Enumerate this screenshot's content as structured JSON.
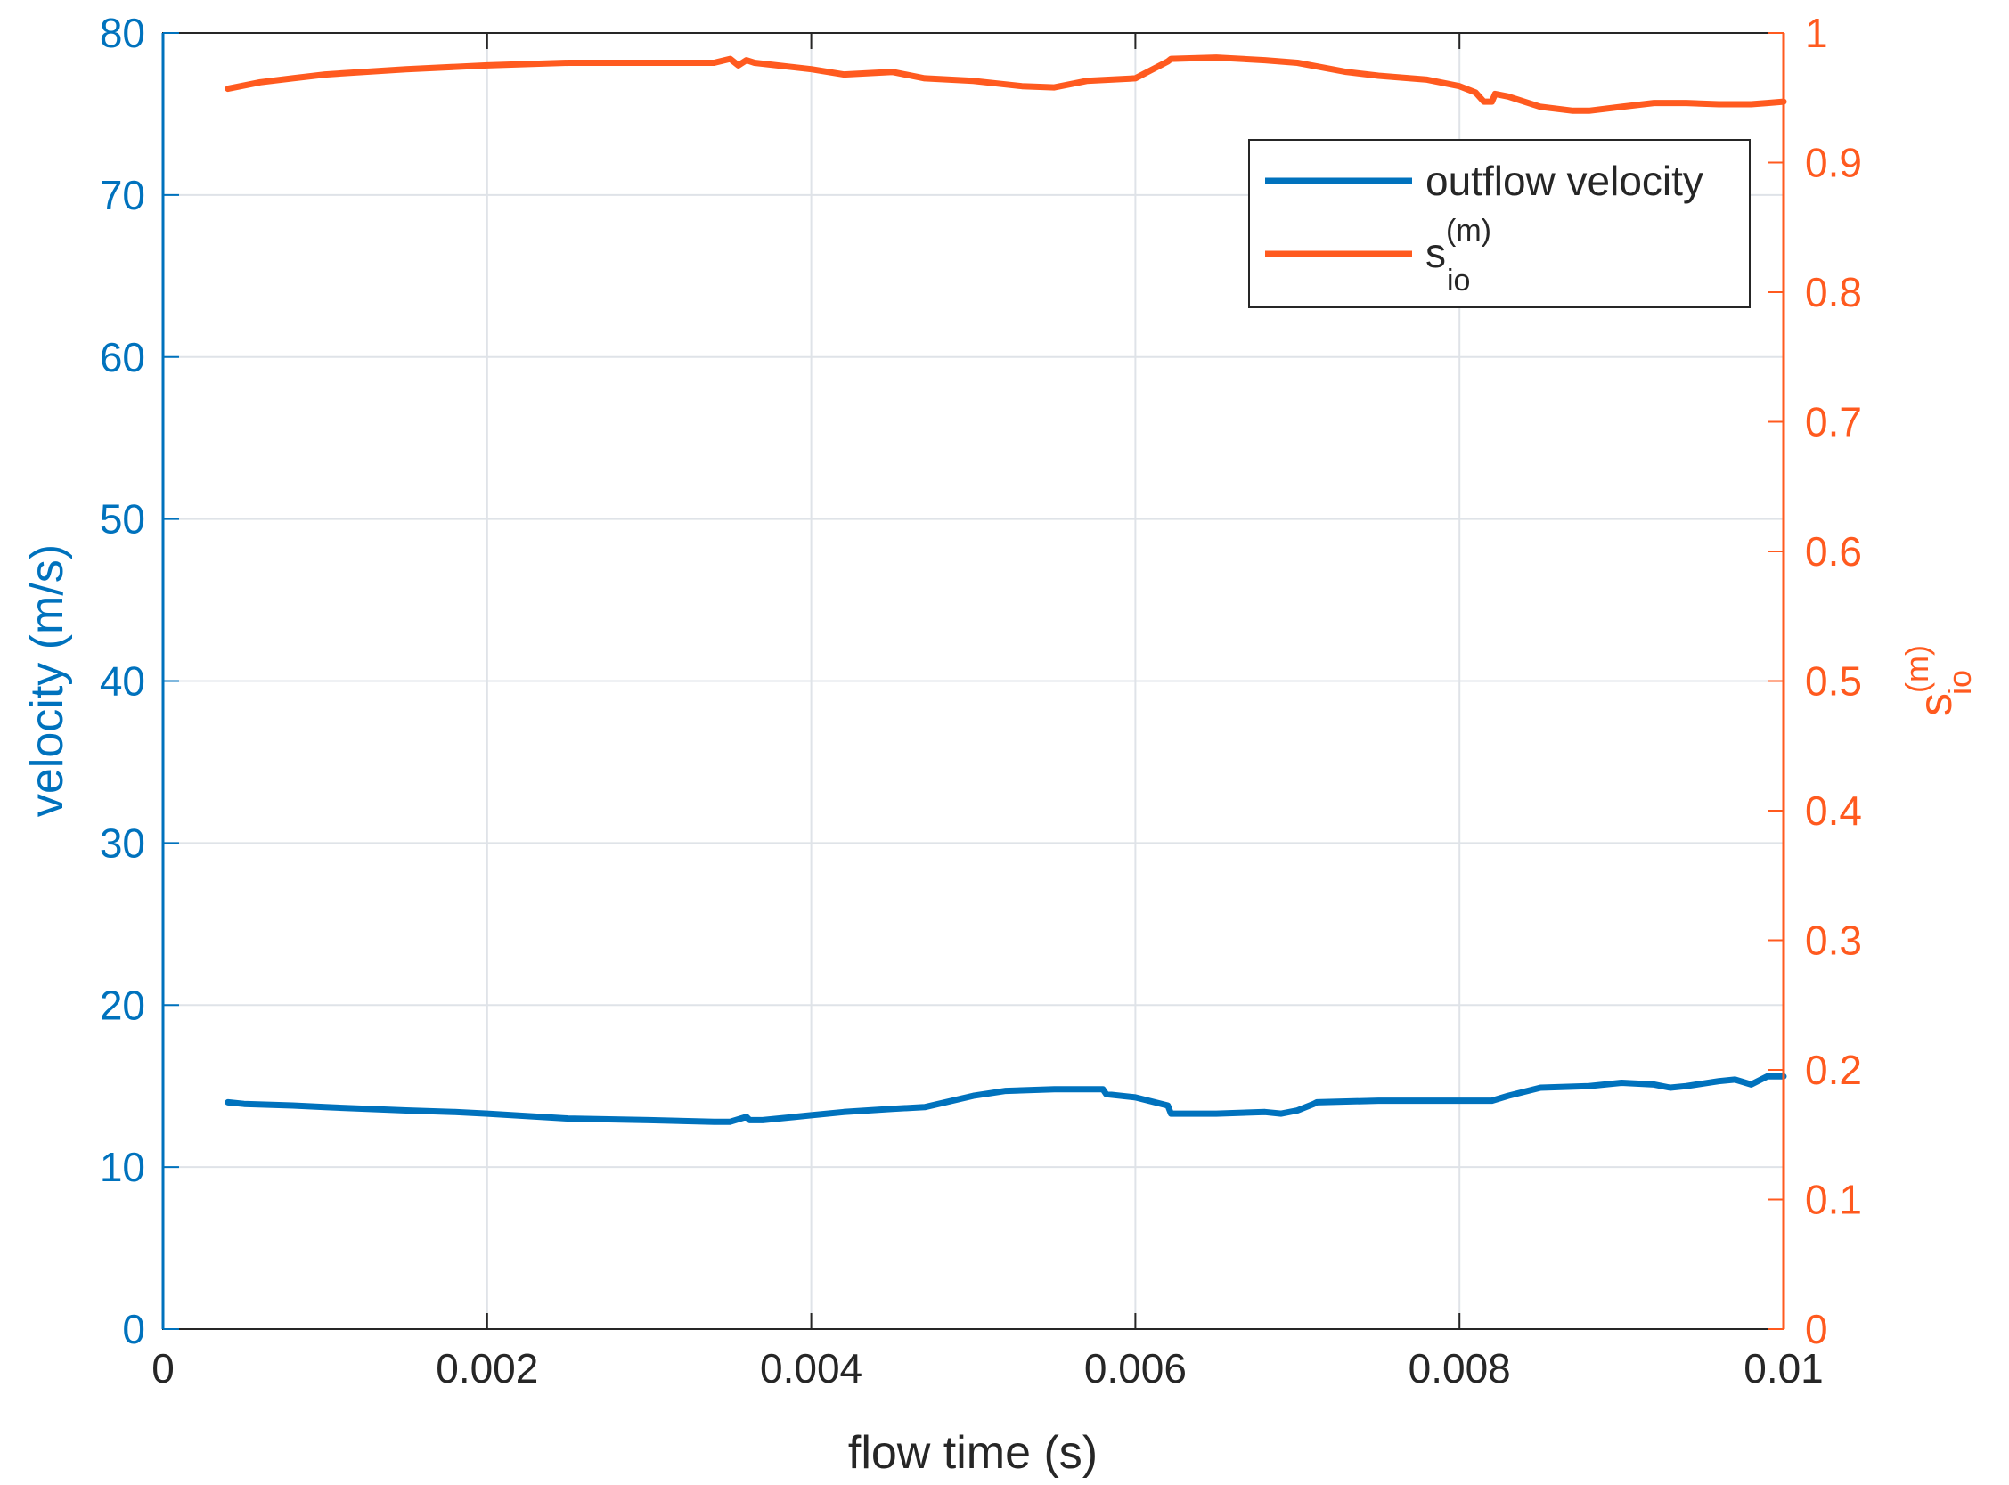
{
  "chart_data": {
    "type": "line",
    "xlabel": "flow time (s)",
    "ylabel_left": "velocity (m/s)",
    "ylabel_right": {
      "base": "s",
      "sup": "(m)",
      "sub": "io"
    },
    "xlim": [
      0,
      0.01
    ],
    "ylim_left": [
      0,
      80
    ],
    "ylim_right": [
      0,
      1
    ],
    "x_ticks": [
      "0",
      "0.002",
      "0.004",
      "0.006",
      "0.008",
      "0.01"
    ],
    "y_left_ticks": [
      "0",
      "10",
      "20",
      "30",
      "40",
      "50",
      "60",
      "70",
      "80"
    ],
    "y_right_ticks": [
      "0",
      "0.1",
      "0.2",
      "0.3",
      "0.4",
      "0.5",
      "0.6",
      "0.7",
      "0.8",
      "0.9",
      "1"
    ],
    "grid": true,
    "legend_position": "top-right",
    "colors": {
      "left_axis": "#0072bd",
      "right_axis": "#ff5a1f",
      "grid": "#dfe3e8",
      "box": "#262626"
    },
    "series": [
      {
        "name": "outflow velocity",
        "axis": "left",
        "color": "#0072bd",
        "x": [
          0.0004,
          0.0005,
          0.0008,
          0.001,
          0.0015,
          0.0018,
          0.002,
          0.0025,
          0.003,
          0.0034,
          0.0035,
          0.0036,
          0.00362,
          0.0037,
          0.004,
          0.0042,
          0.0045,
          0.0047,
          0.005,
          0.0052,
          0.0055,
          0.0058,
          0.00582,
          0.006,
          0.0062,
          0.00622,
          0.0065,
          0.0068,
          0.0069,
          0.007,
          0.0071,
          0.00712,
          0.0075,
          0.008,
          0.0082,
          0.0083,
          0.0085,
          0.0088,
          0.009,
          0.0092,
          0.0093,
          0.0094,
          0.0096,
          0.0097,
          0.0098,
          0.0099,
          0.01
        ],
        "y": [
          14.0,
          13.9,
          13.8,
          13.7,
          13.5,
          13.4,
          13.3,
          13.0,
          12.9,
          12.8,
          12.8,
          13.1,
          12.9,
          12.9,
          13.2,
          13.4,
          13.6,
          13.7,
          14.4,
          14.7,
          14.8,
          14.8,
          14.5,
          14.3,
          13.8,
          13.3,
          13.3,
          13.4,
          13.3,
          13.5,
          13.9,
          14.0,
          14.1,
          14.1,
          14.1,
          14.4,
          14.9,
          15.0,
          15.2,
          15.1,
          14.9,
          15.0,
          15.3,
          15.4,
          15.1,
          15.6,
          15.6
        ]
      },
      {
        "name": "s_io^(m)",
        "axis": "right",
        "color": "#ff5a1f",
        "x": [
          0.0004,
          0.0006,
          0.0008,
          0.001,
          0.0015,
          0.002,
          0.0025,
          0.003,
          0.0034,
          0.0035,
          0.00355,
          0.0036,
          0.00365,
          0.004,
          0.0042,
          0.0045,
          0.0047,
          0.005,
          0.0053,
          0.0055,
          0.0057,
          0.006,
          0.0062,
          0.00622,
          0.0065,
          0.0068,
          0.007,
          0.0073,
          0.0075,
          0.0078,
          0.008,
          0.0081,
          0.00815,
          0.0082,
          0.00822,
          0.0083,
          0.0085,
          0.0087,
          0.0088,
          0.009,
          0.0092,
          0.0094,
          0.0096,
          0.0098,
          0.0099,
          0.01
        ],
        "y": [
          0.957,
          0.962,
          0.965,
          0.968,
          0.972,
          0.975,
          0.977,
          0.977,
          0.977,
          0.98,
          0.975,
          0.979,
          0.977,
          0.972,
          0.968,
          0.97,
          0.965,
          0.963,
          0.959,
          0.958,
          0.963,
          0.965,
          0.978,
          0.98,
          0.981,
          0.979,
          0.977,
          0.97,
          0.967,
          0.964,
          0.959,
          0.954,
          0.947,
          0.947,
          0.953,
          0.951,
          0.943,
          0.94,
          0.94,
          0.943,
          0.946,
          0.946,
          0.945,
          0.945,
          0.946,
          0.947
        ]
      }
    ]
  }
}
